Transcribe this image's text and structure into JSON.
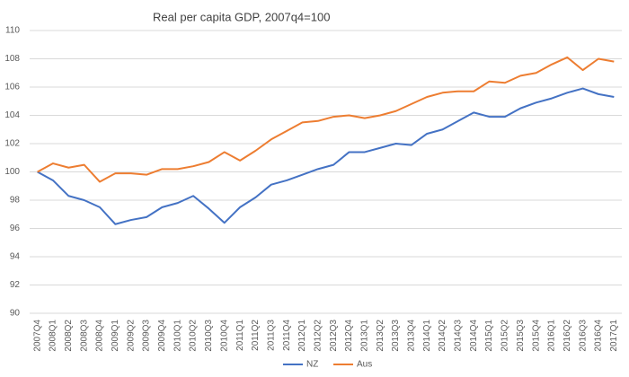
{
  "chart_data": {
    "type": "line",
    "title": "Real per capita GDP,  2007q4=100",
    "categories": [
      "2007Q4",
      "2008Q1",
      "2008Q2",
      "2008Q3",
      "2008Q4",
      "2009Q1",
      "2009Q2",
      "2009Q3",
      "2009Q4",
      "2010Q1",
      "2010Q2",
      "2010Q3",
      "2010Q4",
      "2011Q1",
      "2011Q2",
      "2011Q3",
      "2011Q4",
      "2012Q1",
      "2012Q2",
      "2012Q3",
      "2012Q4",
      "2013Q1",
      "2013Q2",
      "2013Q3",
      "2013Q4",
      "2014Q1",
      "2014Q2",
      "2014Q3",
      "2014Q4",
      "2015Q1",
      "2015Q2",
      "2015Q3",
      "2015Q4",
      "2016Q1",
      "2016Q2",
      "2016Q3",
      "2016Q4",
      "2017Q1"
    ],
    "series": [
      {
        "name": "NZ",
        "color": "#4472c4",
        "values": [
          100,
          99.4,
          98.3,
          98.0,
          97.5,
          96.3,
          96.6,
          96.8,
          97.5,
          97.8,
          98.3,
          97.4,
          96.4,
          97.5,
          98.2,
          99.1,
          99.4,
          99.8,
          100.2,
          100.5,
          101.4,
          101.4,
          101.7,
          102.0,
          101.9,
          102.7,
          103.0,
          103.6,
          104.2,
          103.9,
          103.9,
          104.5,
          104.9,
          105.2,
          105.6,
          105.9,
          105.5,
          105.3
        ]
      },
      {
        "name": "Aus",
        "color": "#ed7d31",
        "values": [
          100,
          100.6,
          100.3,
          100.5,
          99.3,
          99.9,
          99.9,
          99.8,
          100.2,
          100.2,
          100.4,
          100.7,
          101.4,
          100.8,
          101.5,
          102.3,
          102.9,
          103.5,
          103.6,
          103.9,
          104.0,
          103.8,
          104.0,
          104.3,
          104.8,
          105.3,
          105.6,
          105.7,
          105.7,
          106.4,
          106.3,
          106.8,
          107.0,
          107.6,
          108.1,
          107.2,
          108.0,
          107.8
        ]
      }
    ],
    "ylim": [
      90,
      110
    ],
    "yticks": [
      90,
      92,
      94,
      96,
      98,
      100,
      102,
      104,
      106,
      108,
      110
    ],
    "grid": true,
    "legend": "bottom"
  }
}
